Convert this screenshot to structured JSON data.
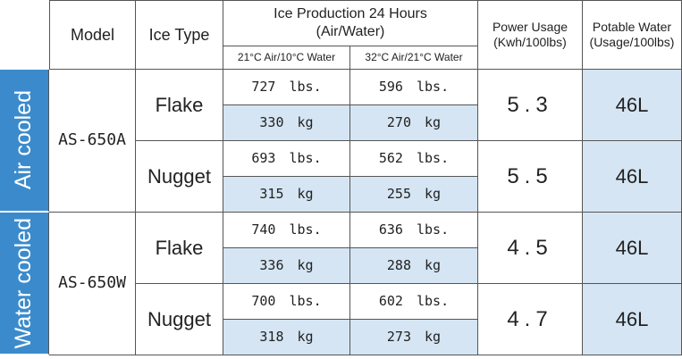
{
  "header": {
    "model": "Model",
    "ice_type": "Ice Type",
    "ice_production": {
      "title": "Ice Production 24 Hours",
      "subtitle": "(Air/Water)",
      "conditions": [
        "21°C Air/10°C Water",
        "32°C Air/21°C Water"
      ]
    },
    "power_usage": {
      "title": "Power Usage",
      "unit": "(Kwh/100lbs)"
    },
    "potable_water": {
      "title": "Potable Water",
      "unit": "(Usage/100lbs)"
    }
  },
  "groups": [
    {
      "label": "Air cooled",
      "model": "AS-650A",
      "rows": [
        {
          "ice_type": "Flake",
          "lbs": [
            "727 lbs.",
            "596 lbs."
          ],
          "kg": [
            "330 kg",
            "270 kg"
          ],
          "power": "5.3",
          "water": "46L"
        },
        {
          "ice_type": "Nugget",
          "lbs": [
            "693 lbs.",
            "562 lbs."
          ],
          "kg": [
            "315 kg",
            "255 kg"
          ],
          "power": "5.5",
          "water": "46L"
        }
      ]
    },
    {
      "label": "Water cooled",
      "model": "AS-650W",
      "rows": [
        {
          "ice_type": "Flake",
          "lbs": [
            "740 lbs.",
            "636 lbs."
          ],
          "kg": [
            "336 kg",
            "288 kg"
          ],
          "power": "4.5",
          "water": "46L"
        },
        {
          "ice_type": "Nugget",
          "lbs": [
            "700 lbs.",
            "602 lbs."
          ],
          "kg": [
            "318 kg",
            "273 kg"
          ],
          "power": "4.7",
          "water": "46L"
        }
      ]
    }
  ]
}
